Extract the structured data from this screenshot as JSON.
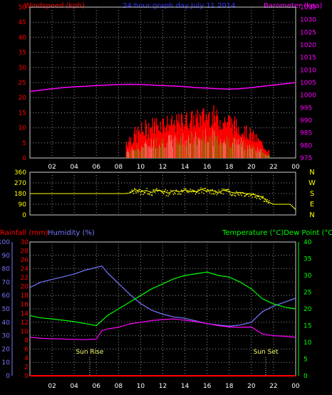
{
  "header": {
    "title": "24 hour graph day  July 11 2014",
    "left_label": "Windspeed (kph)",
    "right_label": "Barometer (kpa)"
  },
  "colors": {
    "wind": "#ff0000",
    "gust": "#ffffff",
    "wind_alt": "#00ff00",
    "barometer": "#ff00ff",
    "direction": "#ffff00",
    "humidity": "#7777ff",
    "temperature": "#00ff00",
    "dew_point": "#ff00ff",
    "rainfall": "#ff0000",
    "grid": "#909090",
    "axis_red": "#ff0000",
    "axis_magenta": "#ff00ff",
    "axis_yellow": "#ffff00",
    "axis_blue": "#7777ff",
    "axis_green": "#00ff00"
  },
  "chart_data": [
    {
      "type": "bar",
      "title": "24 hour graph day  July 11 2014",
      "y_left_label": "Windspeed (kph)",
      "y_left_range": [
        0,
        50
      ],
      "y_left_ticks": [
        "0",
        "5",
        "10",
        "15",
        "20",
        "25",
        "30",
        "35",
        "40",
        "45",
        "50"
      ],
      "y_right_label": "Barometer (kpa)",
      "y_right_range": [
        975,
        1035
      ],
      "y_right_ticks": [
        "975",
        "980",
        "985",
        "990",
        "995",
        "1000",
        "1005",
        "1010",
        "1015",
        "1020",
        "1025",
        "1030",
        "1035"
      ],
      "x_ticks": [
        "02",
        "04",
        "06",
        "08",
        "10",
        "12",
        "14",
        "16",
        "18",
        "20",
        "22",
        "00"
      ],
      "x_range": [
        0,
        24
      ],
      "grid": true,
      "wind_active_hours": [
        8.7,
        21.6
      ],
      "wind_envelope": {
        "hours": [
          8.7,
          10,
          11,
          12,
          13,
          14,
          15,
          16,
          16.5,
          17,
          18,
          19,
          20,
          21,
          21.6
        ],
        "peak_kph": [
          8,
          12,
          14,
          15,
          14,
          16,
          16,
          18,
          18,
          16,
          16,
          12,
          10,
          6,
          3
        ],
        "typical_kph": [
          3,
          5,
          7,
          8,
          8,
          9,
          9,
          10,
          10,
          9,
          8,
          7,
          5,
          3,
          1
        ]
      },
      "series": [
        {
          "name": "Barometer (kpa)",
          "hours": [
            0,
            1,
            2,
            3,
            4,
            5,
            6,
            7,
            8,
            9,
            10,
            11,
            12,
            13,
            14,
            15,
            16,
            17,
            18,
            19,
            20,
            21,
            22,
            23,
            24
          ],
          "values": [
            1001.5,
            1002,
            1002.5,
            1003,
            1003.3,
            1003.5,
            1003.8,
            1004,
            1004.2,
            1004.3,
            1004.2,
            1004,
            1003.8,
            1003.6,
            1003.4,
            1003,
            1002.8,
            1002.5,
            1002.4,
            1002.6,
            1003,
            1003.5,
            1004,
            1004.5,
            1005
          ]
        }
      ]
    },
    {
      "type": "scatter",
      "title": "",
      "y_left_range": [
        0,
        360
      ],
      "y_left_ticks": [
        "0",
        "90",
        "180",
        "270",
        "360"
      ],
      "y_right_ticks": [
        "N",
        "E",
        "S",
        "W",
        "N"
      ],
      "x_ticks": [
        "02",
        "04",
        "06",
        "08",
        "10",
        "12",
        "14",
        "16",
        "18",
        "20",
        "22",
        "00"
      ],
      "x_range": [
        0,
        24
      ],
      "grid": true,
      "series": [
        {
          "name": "",
          "hours": [
            0,
            8.0,
            8.5,
            9,
            9.5,
            10,
            10.5,
            11,
            11.5,
            12,
            12.5,
            13,
            13.5,
            14,
            14.5,
            15,
            15.5,
            16,
            16.5,
            17,
            17.5,
            18,
            18.5,
            19,
            19.5,
            20,
            20.5,
            21,
            21.5,
            22,
            22.5,
            23,
            23.5,
            24
          ],
          "values": [
            180,
            180,
            180,
            185,
            215,
            195,
            205,
            190,
            210,
            200,
            185,
            205,
            195,
            210,
            200,
            195,
            215,
            200,
            205,
            190,
            210,
            195,
            185,
            190,
            180,
            175,
            165,
            150,
            110,
            90,
            90,
            90,
            90,
            45
          ]
        }
      ]
    },
    {
      "type": "line",
      "title": "",
      "y_left_labels": [
        "Rainfall (mm)",
        "Humidity (%)"
      ],
      "rainfall_range": [
        0,
        30
      ],
      "rainfall_ticks": [
        "0",
        "2",
        "4",
        "6",
        "8",
        "10",
        "12",
        "14",
        "16",
        "18",
        "20",
        "22",
        "24",
        "26",
        "28",
        "30"
      ],
      "humidity_range": [
        0,
        100
      ],
      "humidity_ticks": [
        "0",
        "10",
        "20",
        "30",
        "40",
        "50",
        "60",
        "70",
        "80",
        "90",
        "100"
      ],
      "y_right_label": "Temperature (°C)Dew Point (°C)",
      "temperature_range": [
        0,
        40
      ],
      "temperature_ticks": [
        "0",
        "5",
        "10",
        "15",
        "20",
        "25",
        "30",
        "35",
        "40"
      ],
      "x_ticks": [
        "02",
        "04",
        "06",
        "08",
        "10",
        "12",
        "14",
        "16",
        "18",
        "20",
        "22",
        "00"
      ],
      "x_range": [
        0,
        24
      ],
      "grid": true,
      "annotations": [
        {
          "text": "Sun Rise",
          "hour": 5.4
        },
        {
          "text": "Sun Set",
          "hour": 21.3
        }
      ],
      "series": [
        {
          "name": "Humidity (%)",
          "hours": [
            0,
            1,
            2,
            3,
            4,
            5,
            6,
            6.5,
            7,
            8,
            9,
            10,
            11,
            12,
            13,
            14,
            15,
            16,
            17,
            18,
            19,
            20,
            21,
            22,
            23,
            24
          ],
          "values": [
            66,
            70,
            72,
            74,
            76,
            79,
            81,
            82,
            77,
            69,
            61,
            54,
            49,
            46,
            44,
            43,
            41,
            39,
            38,
            37,
            38,
            40,
            48,
            52,
            55,
            58
          ]
        },
        {
          "name": "Temperature (°C)",
          "hours": [
            0,
            1,
            2,
            3,
            4,
            5,
            6,
            6.5,
            7,
            8,
            9,
            10,
            11,
            12,
            13,
            14,
            15,
            16,
            17,
            18,
            19,
            20,
            21,
            22,
            23,
            24
          ],
          "values": [
            18,
            17.3,
            17,
            16.6,
            16.2,
            15.6,
            15,
            16.5,
            18,
            20,
            22,
            24,
            26,
            27.5,
            29,
            30,
            30.5,
            31,
            30,
            29.5,
            28,
            26,
            23,
            21.5,
            20.5,
            20
          ]
        },
        {
          "name": "Dew Point (°C)",
          "hours": [
            0,
            1,
            2,
            3,
            4,
            5,
            6,
            6.5,
            7,
            8,
            9,
            10,
            11,
            12,
            13,
            14,
            15,
            16,
            17,
            18,
            19,
            20,
            21,
            22,
            23,
            24
          ],
          "values": [
            11.5,
            11.2,
            11.1,
            11.0,
            10.9,
            10.8,
            11.0,
            13.5,
            14,
            14.5,
            15.5,
            16,
            16.5,
            16.8,
            17,
            16.6,
            16.2,
            15.6,
            15.0,
            14.6,
            14.5,
            14.6,
            12.5,
            12.0,
            11.8,
            11.5
          ]
        },
        {
          "name": "Rainfall (mm)",
          "hours": [
            0,
            24
          ],
          "values": [
            0,
            0
          ]
        }
      ]
    }
  ]
}
